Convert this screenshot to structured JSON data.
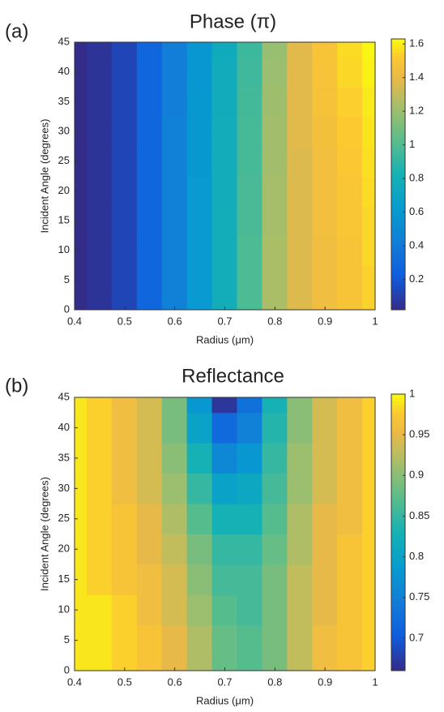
{
  "chart_data": [
    {
      "type": "heatmap",
      "panel_label": "(a)",
      "title": "Phase (π)",
      "xlabel": "Radius (μm)",
      "ylabel": "Incident Angle (degrees)",
      "colormap": "parula",
      "x": [
        0.4,
        0.45,
        0.5,
        0.55,
        0.6,
        0.65,
        0.7,
        0.75,
        0.8,
        0.85,
        0.9,
        0.95,
        1
      ],
      "y": [
        0,
        5,
        10,
        15,
        20,
        25,
        30,
        35,
        40,
        45
      ],
      "z": [
        [
          0.03,
          0.06,
          0.13,
          0.28,
          0.44,
          0.61,
          0.79,
          0.99,
          1.24,
          1.37,
          1.44,
          1.49,
          1.54
        ],
        [
          0.03,
          0.06,
          0.13,
          0.28,
          0.44,
          0.61,
          0.79,
          0.99,
          1.24,
          1.37,
          1.44,
          1.49,
          1.54
        ],
        [
          0.03,
          0.06,
          0.13,
          0.28,
          0.44,
          0.61,
          0.79,
          0.99,
          1.24,
          1.37,
          1.44,
          1.49,
          1.55
        ],
        [
          0.03,
          0.06,
          0.13,
          0.28,
          0.44,
          0.61,
          0.79,
          0.98,
          1.23,
          1.37,
          1.45,
          1.5,
          1.55
        ],
        [
          0.03,
          0.06,
          0.13,
          0.28,
          0.44,
          0.61,
          0.78,
          0.98,
          1.23,
          1.37,
          1.45,
          1.5,
          1.56
        ],
        [
          0.03,
          0.06,
          0.13,
          0.28,
          0.44,
          0.6,
          0.78,
          0.97,
          1.22,
          1.37,
          1.45,
          1.51,
          1.57
        ],
        [
          0.03,
          0.06,
          0.13,
          0.28,
          0.44,
          0.6,
          0.78,
          0.97,
          1.22,
          1.38,
          1.46,
          1.52,
          1.58
        ],
        [
          0.03,
          0.06,
          0.13,
          0.28,
          0.43,
          0.6,
          0.77,
          0.96,
          1.21,
          1.38,
          1.47,
          1.53,
          1.59
        ],
        [
          0.03,
          0.06,
          0.13,
          0.28,
          0.43,
          0.59,
          0.77,
          0.95,
          1.2,
          1.38,
          1.48,
          1.55,
          1.61
        ],
        [
          0.03,
          0.06,
          0.13,
          0.28,
          0.43,
          0.59,
          0.76,
          0.94,
          1.19,
          1.38,
          1.49,
          1.56,
          1.62
        ]
      ],
      "xlim": [
        0.4,
        1
      ],
      "ylim": [
        0,
        45
      ],
      "xticks": [
        0.4,
        0.5,
        0.6,
        0.7,
        0.8,
        0.9,
        1
      ],
      "yticks": [
        0,
        5,
        10,
        15,
        20,
        25,
        30,
        35,
        40,
        45
      ],
      "clim": [
        0.02,
        1.63
      ],
      "cticks": [
        0.2,
        0.4,
        0.6,
        0.8,
        1,
        1.2,
        1.4,
        1.6
      ]
    },
    {
      "type": "heatmap",
      "panel_label": "(b)",
      "title": "Reflectance",
      "xlabel": "Radius (μm)",
      "ylabel": "Incident Angle (degrees)",
      "colormap": "parula",
      "x": [
        0.4,
        0.45,
        0.5,
        0.55,
        0.6,
        0.65,
        0.7,
        0.75,
        0.8,
        0.85,
        0.9,
        0.95,
        1
      ],
      "y": [
        0,
        5,
        10,
        15,
        20,
        25,
        30,
        35,
        40,
        45
      ],
      "z": [
        [
          0.99,
          0.99,
          0.98,
          0.97,
          0.95,
          0.92,
          0.88,
          0.87,
          0.89,
          0.93,
          0.96,
          0.97,
          0.98
        ],
        [
          0.99,
          0.99,
          0.98,
          0.97,
          0.95,
          0.92,
          0.88,
          0.87,
          0.89,
          0.93,
          0.96,
          0.97,
          0.98
        ],
        [
          0.99,
          0.99,
          0.98,
          0.96,
          0.94,
          0.91,
          0.87,
          0.86,
          0.89,
          0.93,
          0.95,
          0.97,
          0.98
        ],
        [
          0.99,
          0.98,
          0.97,
          0.96,
          0.94,
          0.9,
          0.86,
          0.86,
          0.89,
          0.93,
          0.95,
          0.97,
          0.98
        ],
        [
          0.99,
          0.98,
          0.97,
          0.95,
          0.93,
          0.89,
          0.85,
          0.85,
          0.88,
          0.92,
          0.95,
          0.97,
          0.98
        ],
        [
          0.99,
          0.98,
          0.97,
          0.95,
          0.92,
          0.87,
          0.83,
          0.83,
          0.87,
          0.92,
          0.95,
          0.96,
          0.98
        ],
        [
          0.99,
          0.98,
          0.96,
          0.94,
          0.91,
          0.85,
          0.8,
          0.81,
          0.86,
          0.91,
          0.94,
          0.96,
          0.98
        ],
        [
          0.99,
          0.98,
          0.96,
          0.94,
          0.9,
          0.83,
          0.76,
          0.78,
          0.85,
          0.91,
          0.94,
          0.96,
          0.98
        ],
        [
          0.99,
          0.98,
          0.96,
          0.94,
          0.89,
          0.8,
          0.72,
          0.75,
          0.84,
          0.9,
          0.94,
          0.96,
          0.98
        ],
        [
          0.99,
          0.98,
          0.96,
          0.94,
          0.89,
          0.78,
          0.67,
          0.73,
          0.83,
          0.9,
          0.94,
          0.96,
          0.98
        ]
      ],
      "xlim": [
        0.4,
        1
      ],
      "ylim": [
        0,
        45
      ],
      "xticks": [
        0.4,
        0.5,
        0.6,
        0.7,
        0.8,
        0.9,
        1
      ],
      "yticks": [
        0,
        5,
        10,
        15,
        20,
        25,
        30,
        35,
        40,
        45
      ],
      "clim": [
        0.66,
        1
      ],
      "cticks": [
        0.7,
        0.75,
        0.8,
        0.85,
        0.9,
        0.95,
        1
      ]
    }
  ]
}
